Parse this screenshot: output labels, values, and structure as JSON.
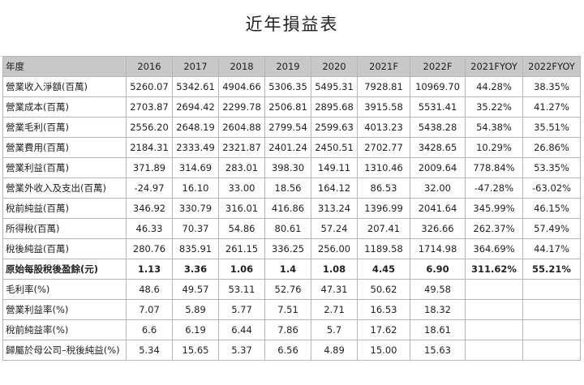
{
  "page_title": "近年損益表",
  "table": {
    "headers": [
      "年度",
      "2016",
      "2017",
      "2018",
      "2019",
      "2020",
      "2021F",
      "2022F",
      "2021FYOY",
      "2022FYOY"
    ],
    "rows": [
      {
        "label": "營業收入淨額(百萬)",
        "values": [
          "5260.07",
          "5342.61",
          "4904.66",
          "5306.35",
          "5495.31",
          "7928.81",
          "10969.70",
          "44.28%",
          "38.35%"
        ]
      },
      {
        "label": "營業成本(百萬)",
        "values": [
          "2703.87",
          "2694.42",
          "2299.78",
          "2506.81",
          "2895.68",
          "3915.58",
          "5531.41",
          "35.22%",
          "41.27%"
        ]
      },
      {
        "label": "營業毛利(百萬)",
        "values": [
          "2556.20",
          "2648.19",
          "2604.88",
          "2799.54",
          "2599.63",
          "4013.23",
          "5438.28",
          "54.38%",
          "35.51%"
        ]
      },
      {
        "label": "營業費用(百萬)",
        "values": [
          "2184.31",
          "2333.49",
          "2321.87",
          "2401.24",
          "2450.51",
          "2702.77",
          "3428.65",
          "10.29%",
          "26.86%"
        ]
      },
      {
        "label": "營業利益(百萬)",
        "values": [
          "371.89",
          "314.69",
          "283.01",
          "398.30",
          "149.11",
          "1310.46",
          "2009.64",
          "778.84%",
          "53.35%"
        ]
      },
      {
        "label": "營業外收入及支出(百萬)",
        "values": [
          "-24.97",
          "16.10",
          "33.00",
          "18.56",
          "164.12",
          "86.53",
          "32.00",
          "-47.28%",
          "-63.02%"
        ]
      },
      {
        "label": "稅前純益(百萬)",
        "values": [
          "346.92",
          "330.79",
          "316.01",
          "416.86",
          "313.24",
          "1396.99",
          "2041.64",
          "345.99%",
          "46.15%"
        ]
      },
      {
        "label": "所得稅(百萬)",
        "values": [
          "46.33",
          "70.37",
          "54.86",
          "80.61",
          "57.24",
          "207.41",
          "326.66",
          "262.37%",
          "57.49%"
        ]
      },
      {
        "label": "稅後純益(百萬)",
        "values": [
          "280.76",
          "835.91",
          "261.15",
          "336.25",
          "256.00",
          "1189.58",
          "1714.98",
          "364.69%",
          "44.17%"
        ]
      },
      {
        "label": "原始每股稅後盈餘(元)",
        "values": [
          "1.13",
          "3.36",
          "1.06",
          "1.4",
          "1.08",
          "4.45",
          "6.90",
          "311.62%",
          "55.21%"
        ],
        "bold": true
      },
      {
        "label": "毛利率(%)",
        "values": [
          "48.6",
          "49.57",
          "53.11",
          "52.76",
          "47.31",
          "50.62",
          "49.58",
          "",
          ""
        ]
      },
      {
        "label": "營業利益率(%)",
        "values": [
          "7.07",
          "5.89",
          "5.77",
          "7.51",
          "2.71",
          "16.53",
          "18.32",
          "",
          ""
        ]
      },
      {
        "label": "稅前純益率(%)",
        "values": [
          "6.6",
          "6.19",
          "6.44",
          "7.86",
          "5.7",
          "17.62",
          "18.61",
          "",
          ""
        ]
      },
      {
        "label": "歸屬於母公司–稅後純益(%)",
        "values": [
          "5.34",
          "15.65",
          "5.37",
          "6.56",
          "4.89",
          "15.00",
          "15.63",
          "",
          ""
        ]
      }
    ]
  }
}
